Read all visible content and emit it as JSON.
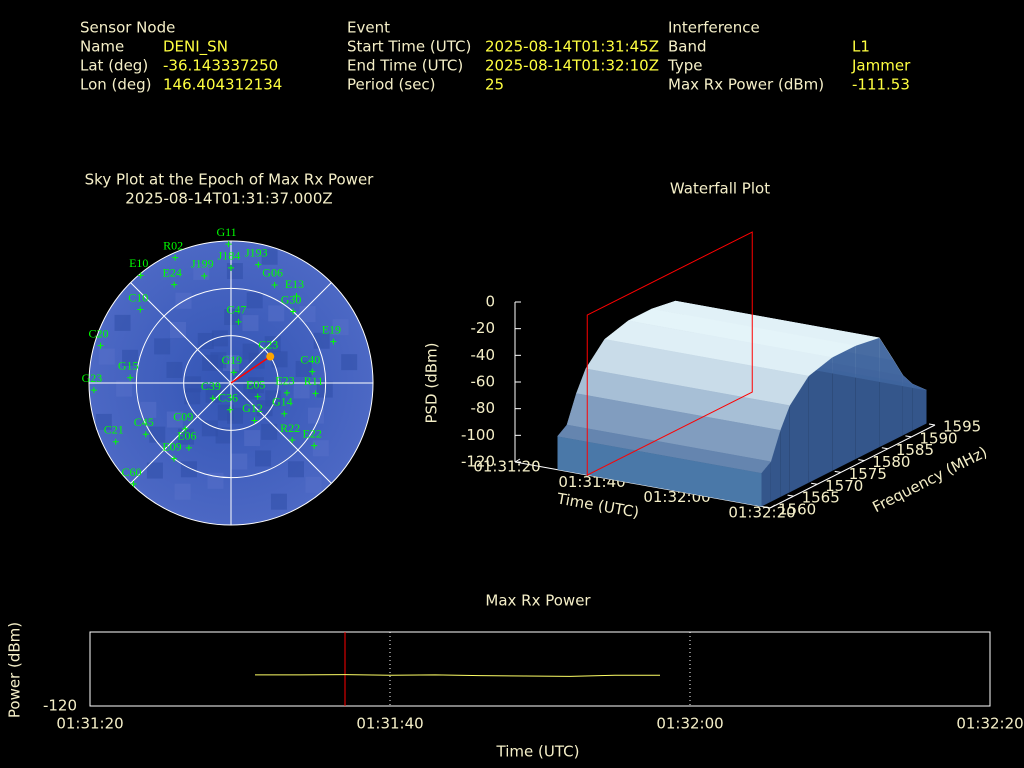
{
  "header": {
    "sensor_node": {
      "title": "Sensor Node",
      "rows": [
        [
          "Name",
          "DENI_SN"
        ],
        [
          "Lat (deg)",
          "-36.143337250"
        ],
        [
          "Lon (deg)",
          "146.404312134"
        ]
      ]
    },
    "event": {
      "title": "Event",
      "rows": [
        [
          "Start Time (UTC)",
          "2025-08-14T01:31:45Z"
        ],
        [
          "End Time (UTC)",
          "2025-08-14T01:32:10Z"
        ],
        [
          "Period (sec)",
          "25"
        ]
      ]
    },
    "interference": {
      "title": "Interference",
      "rows": [
        [
          "Band",
          "L1"
        ],
        [
          "Type",
          "Jammer"
        ],
        [
          "Max Rx Power (dBm)",
          "-111.53"
        ]
      ]
    }
  },
  "chart_data": [
    {
      "type": "skyplot",
      "title": "Sky Plot at the Epoch of Max Rx Power",
      "subtitle": "2025-08-14T01:31:37.000Z",
      "color": "#00ff00",
      "elevation_range": [
        0,
        90
      ],
      "rticks": [
        0,
        30,
        60
      ],
      "azimuth_lines": [
        0,
        45,
        90,
        135,
        180,
        225,
        270,
        315
      ],
      "highlight": "C23",
      "highlight_color": "#ffa500",
      "highlight_line_color": "#ff0000",
      "satellites": [
        {
          "name": "G11",
          "azimuth": 359,
          "elevation": 2
        },
        {
          "name": "R02",
          "azimuth": 336,
          "elevation": 3
        },
        {
          "name": "E10",
          "azimuth": 320,
          "elevation": 1
        },
        {
          "name": "E24",
          "azimuth": 330,
          "elevation": 18
        },
        {
          "name": "J199",
          "azimuth": 346,
          "elevation": 20
        },
        {
          "name": "J184",
          "azimuth": 0,
          "elevation": 17
        },
        {
          "name": "J193",
          "azimuth": 13,
          "elevation": 13
        },
        {
          "name": "G06",
          "azimuth": 24,
          "elevation": 22
        },
        {
          "name": "E13",
          "azimuth": 37,
          "elevation": 21
        },
        {
          "name": "G30",
          "azimuth": 41,
          "elevation": 30
        },
        {
          "name": "E19",
          "azimuth": 68,
          "elevation": 20
        },
        {
          "name": "C10",
          "azimuth": 309,
          "elevation": 16
        },
        {
          "name": "C20",
          "azimuth": 286,
          "elevation": 4
        },
        {
          "name": "C40",
          "azimuth": 82,
          "elevation": 38
        },
        {
          "name": "G19",
          "azimuth": 15,
          "elevation": 83
        },
        {
          "name": "C23",
          "azimuth": 56,
          "elevation": 60
        },
        {
          "name": "G15",
          "azimuth": 273,
          "elevation": 26
        },
        {
          "name": "G23",
          "azimuth": 267,
          "elevation": 3
        },
        {
          "name": "E23",
          "azimuth": 100,
          "elevation": 54
        },
        {
          "name": "R11",
          "azimuth": 97,
          "elevation": 36
        },
        {
          "name": "G14",
          "azimuth": 120,
          "elevation": 51
        },
        {
          "name": "C09",
          "azimuth": 225,
          "elevation": 49
        },
        {
          "name": "E06",
          "azimuth": 213,
          "elevation": 41
        },
        {
          "name": "R22",
          "azimuth": 133,
          "elevation": 37
        },
        {
          "name": "E22",
          "azimuth": 127,
          "elevation": 24
        },
        {
          "name": "C21",
          "azimuth": 243,
          "elevation": 8
        },
        {
          "name": "C45",
          "azimuth": 239,
          "elevation": 27
        },
        {
          "name": "E09",
          "azimuth": 217,
          "elevation": 30
        },
        {
          "name": "C60",
          "azimuth": 224,
          "elevation": 1
        },
        {
          "name": "G12",
          "azimuth": 148,
          "elevation": 62
        },
        {
          "name": "C36",
          "azimuth": 182,
          "elevation": 73
        },
        {
          "name": "E05",
          "azimuth": 117,
          "elevation": 71
        },
        {
          "name": "C47",
          "azimuth": 7,
          "elevation": 51
        },
        {
          "name": "C39",
          "azimuth": 230,
          "elevation": 75
        }
      ]
    },
    {
      "type": "waterfall3d",
      "title": "Waterfall Plot",
      "xlabel": "Time (UTC)",
      "ylabel": "Frequency (MHz)",
      "zlabel": "PSD (dBm)",
      "xlim": [
        "01:31:20",
        "01:32:20"
      ],
      "xticks": [
        "01:31:20",
        "01:31:40",
        "01:32:00",
        "01:32:20"
      ],
      "ylim": [
        1560,
        1595
      ],
      "yticks": [
        1560,
        1565,
        1570,
        1575,
        1580,
        1585,
        1590,
        1595
      ],
      "zlim": [
        -120,
        0
      ],
      "zticks": [
        -120,
        -100,
        -80,
        -60,
        -40,
        -20,
        0
      ],
      "surface": {
        "time_range": [
          "01:31:30",
          "01:32:18"
        ],
        "frequency": [
          1560,
          1562,
          1564,
          1566,
          1570,
          1575,
          1580,
          1585,
          1588,
          1590,
          1592,
          1595
        ],
        "psd": [
          -95,
          -90,
          -70,
          -55,
          -40,
          -35,
          -35,
          -38,
          -60,
          -75,
          -85,
          -95
        ]
      },
      "marker_time": "01:31:37",
      "marker_color": "#ff0000"
    },
    {
      "type": "line",
      "title": "Max Rx Power",
      "xlabel": "Time (UTC)",
      "ylabel": "Power (dBm)",
      "x": [
        "01:31:31",
        "01:31:34",
        "01:31:37",
        "01:31:40",
        "01:31:43",
        "01:31:46",
        "01:31:49",
        "01:31:52",
        "01:31:55",
        "01:31:58"
      ],
      "values": [
        -111.6,
        -111.6,
        -111.53,
        -111.7,
        -111.6,
        -111.8,
        -111.9,
        -112.0,
        -111.7,
        -111.7
      ],
      "color": "#ffff66",
      "xlim": [
        "01:31:20",
        "01:32:20"
      ],
      "xticks": [
        "01:31:20",
        "01:31:40",
        "01:32:00",
        "01:32:20"
      ],
      "ylim": [
        -120,
        -100
      ],
      "yticks": [
        -120
      ],
      "grid": true,
      "marker_time": "01:31:37",
      "marker_color": "#ff0000"
    }
  ]
}
